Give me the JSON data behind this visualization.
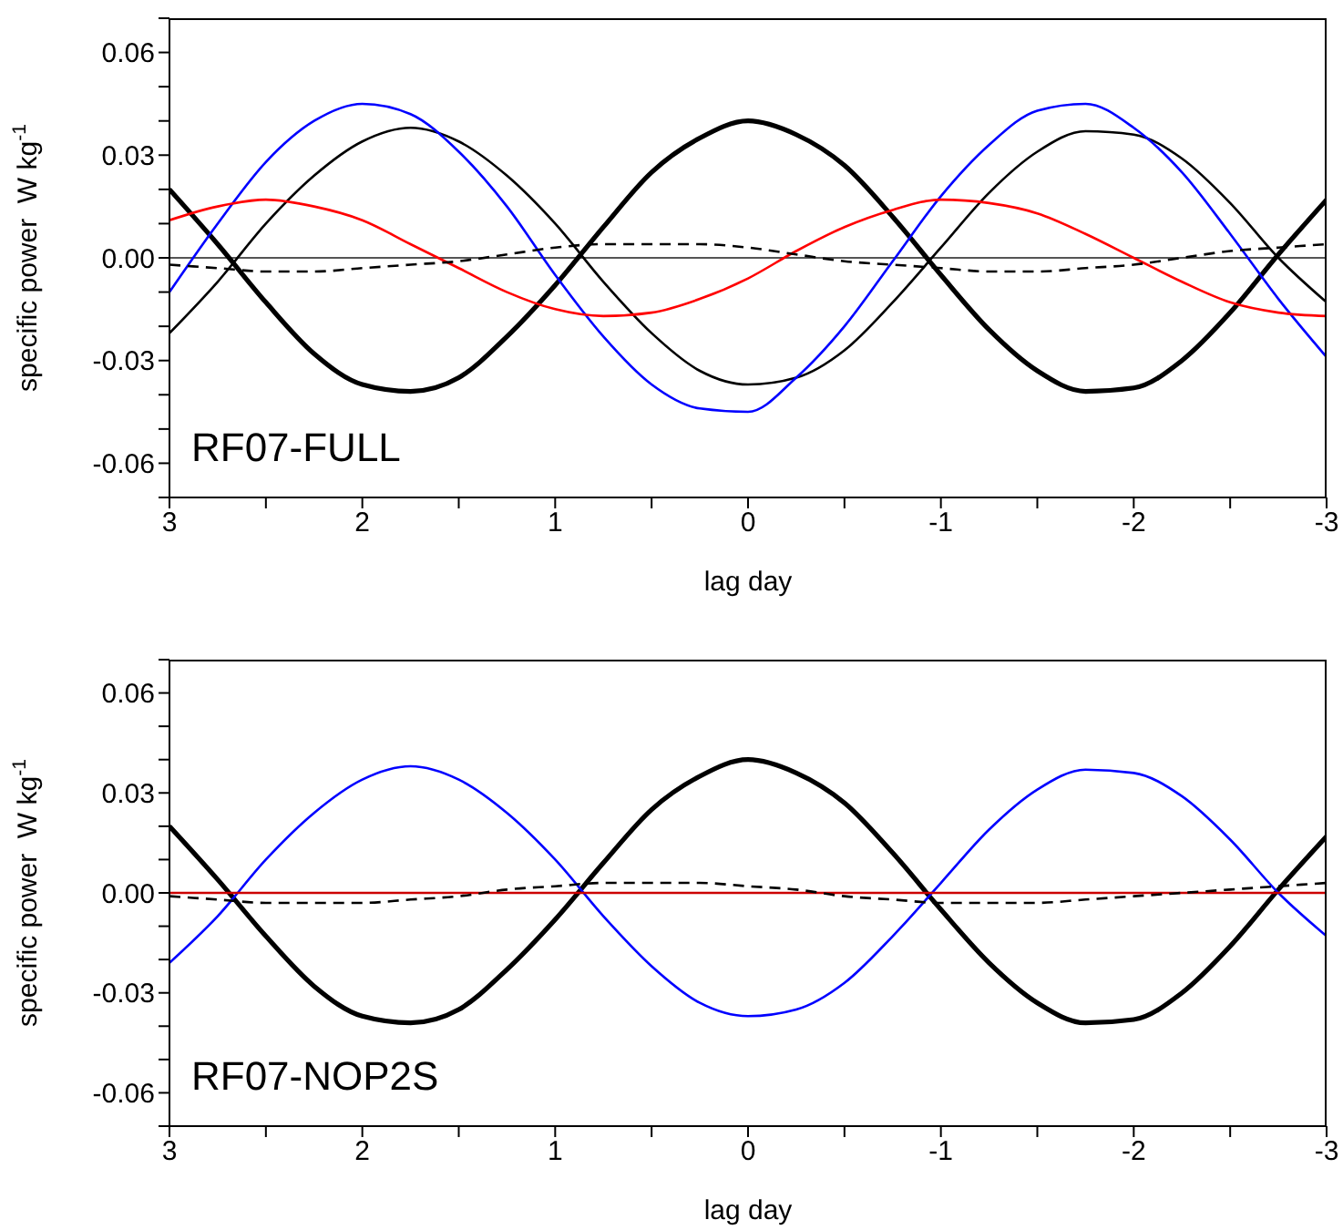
{
  "chart_data": [
    {
      "type": "line",
      "xlabel": "lag  day",
      "ylabel": "specific power  W kg$^{-1}$",
      "annotations": [
        "RF07-FULL"
      ],
      "grid": false,
      "legend": false,
      "marker": "none",
      "xlim": [
        3,
        -3
      ],
      "ylim": [
        -0.07,
        0.07
      ],
      "xticks": [
        3,
        {
          "value": 2.5,
          "label": null
        },
        2,
        {
          "value": 1.5,
          "label": null
        },
        1,
        {
          "value": 0.5,
          "label": null
        },
        0,
        {
          "value": -0.5,
          "label": null
        },
        -1,
        {
          "value": -1.5,
          "label": null
        },
        -2,
        {
          "value": -2.5,
          "label": null
        },
        -3
      ],
      "yticks": [
        {
          "value": -0.07,
          "label": null
        },
        -0.06,
        {
          "value": -0.05,
          "label": null
        },
        {
          "value": -0.04,
          "label": null
        },
        -0.03,
        {
          "value": -0.02,
          "label": null
        },
        {
          "value": -0.01,
          "label": null
        },
        {
          "value": 0,
          "label": "0.00"
        },
        {
          "value": 0.01,
          "label": null
        },
        {
          "value": 0.02,
          "label": null
        },
        0.03,
        {
          "value": 0.04,
          "label": null
        },
        {
          "value": 0.05,
          "label": null
        },
        0.06,
        {
          "value": 0.07,
          "label": null
        }
      ],
      "ref_lines": [
        {
          "axis": "y",
          "value": 0,
          "color": "#555555"
        }
      ],
      "x": [
        3,
        2.75,
        2.5,
        2.25,
        2,
        1.75,
        1.5,
        1.25,
        1,
        0.75,
        0.5,
        0.25,
        0,
        -0.25,
        -0.5,
        -0.75,
        -1,
        -1.25,
        -1.5,
        -1.75,
        -2,
        -2.25,
        -2.5,
        -2.75,
        -3
      ],
      "series": [
        {
          "color": "#000000",
          "line_style": "solid",
          "values": [
            0.02,
            0.004,
            -0.013,
            -0.028,
            -0.037,
            -0.039,
            -0.035,
            -0.023,
            -0.008,
            0.009,
            0.025,
            0.035,
            0.04,
            0.036,
            0.027,
            0.012,
            -0.005,
            -0.021,
            -0.033,
            -0.039,
            -0.038,
            -0.03,
            -0.016,
            0.001,
            0.017
          ]
        },
        {
          "color": "#000000",
          "line_style": "solid",
          "values": [
            -0.022,
            -0.007,
            0.01,
            0.024,
            0.034,
            0.038,
            0.034,
            0.024,
            0.01,
            -0.007,
            -0.022,
            -0.033,
            -0.037,
            -0.035,
            -0.027,
            -0.013,
            0.003,
            0.019,
            0.031,
            0.037,
            0.036,
            0.029,
            0.016,
            0.0,
            -0.013
          ]
        },
        {
          "color": "#0000ff",
          "line_style": "solid",
          "values": [
            -0.01,
            0.01,
            0.028,
            0.04,
            0.045,
            0.042,
            0.031,
            0.015,
            -0.005,
            -0.023,
            -0.037,
            -0.044,
            -0.045,
            -0.035,
            -0.02,
            -0.001,
            0.018,
            0.033,
            0.043,
            0.045,
            0.038,
            0.025,
            0.007,
            -0.012,
            -0.029
          ]
        },
        {
          "color": "#ff0000",
          "line_style": "solid",
          "values": [
            0.011,
            0.015,
            0.017,
            0.015,
            0.011,
            0.004,
            -0.003,
            -0.01,
            -0.015,
            -0.017,
            -0.016,
            -0.012,
            -0.006,
            0.002,
            0.009,
            0.014,
            0.017,
            0.016,
            0.013,
            0.007,
            0.0,
            -0.007,
            -0.013,
            -0.016,
            -0.017
          ]
        },
        {
          "color": "#000000",
          "line_style": "dashed",
          "values": [
            -0.002,
            -0.003,
            -0.004,
            -0.004,
            -0.003,
            -0.002,
            -0.001,
            0.001,
            0.003,
            0.004,
            0.004,
            0.004,
            0.003,
            0.001,
            -0.001,
            -0.002,
            -0.003,
            -0.004,
            -0.004,
            -0.003,
            -0.002,
            0.0,
            0.002,
            0.003,
            0.004
          ]
        }
      ]
    },
    {
      "type": "line",
      "xlabel": "lag  day",
      "ylabel": "specific power  W kg$^{-1}$",
      "annotations": [
        "RF07-NOP2S"
      ],
      "grid": false,
      "legend": false,
      "marker": "none",
      "xlim": [
        3,
        -3
      ],
      "ylim": [
        -0.07,
        0.07
      ],
      "xticks": [
        3,
        {
          "value": 2.5,
          "label": null
        },
        2,
        {
          "value": 1.5,
          "label": null
        },
        1,
        {
          "value": 0.5,
          "label": null
        },
        0,
        {
          "value": -0.5,
          "label": null
        },
        -1,
        {
          "value": -1.5,
          "label": null
        },
        -2,
        {
          "value": -2.5,
          "label": null
        },
        -3
      ],
      "yticks": [
        {
          "value": -0.07,
          "label": null
        },
        -0.06,
        {
          "value": -0.05,
          "label": null
        },
        {
          "value": -0.04,
          "label": null
        },
        -0.03,
        {
          "value": -0.02,
          "label": null
        },
        {
          "value": -0.01,
          "label": null
        },
        {
          "value": 0,
          "label": "0.00"
        },
        {
          "value": 0.01,
          "label": null
        },
        {
          "value": 0.02,
          "label": null
        },
        0.03,
        {
          "value": 0.04,
          "label": null
        },
        {
          "value": 0.05,
          "label": null
        },
        0.06,
        {
          "value": 0.07,
          "label": null
        }
      ],
      "x": [
        3,
        2.75,
        2.5,
        2.25,
        2,
        1.75,
        1.5,
        1.25,
        1,
        0.75,
        0.5,
        0.25,
        0,
        -0.25,
        -0.5,
        -0.75,
        -1,
        -1.25,
        -1.5,
        -1.75,
        -2,
        -2.25,
        -2.5,
        -2.75,
        -3
      ],
      "series": [
        {
          "color": "#000000",
          "line_style": "solid",
          "values": [
            0.02,
            0.004,
            -0.013,
            -0.028,
            -0.037,
            -0.039,
            -0.035,
            -0.023,
            -0.008,
            0.009,
            0.025,
            0.035,
            0.04,
            0.036,
            0.027,
            0.012,
            -0.005,
            -0.021,
            -0.033,
            -0.039,
            -0.038,
            -0.03,
            -0.016,
            0.001,
            0.017
          ]
        },
        {
          "color": "#0000ff",
          "line_style": "solid",
          "values": [
            -0.021,
            -0.007,
            0.01,
            0.024,
            0.034,
            0.038,
            0.034,
            0.024,
            0.01,
            -0.007,
            -0.022,
            -0.033,
            -0.037,
            -0.035,
            -0.027,
            -0.013,
            0.003,
            0.019,
            0.031,
            0.037,
            0.036,
            0.029,
            0.016,
            0.0,
            -0.013
          ]
        },
        {
          "color": "#cc0000",
          "line_style": "solid",
          "values": [
            0,
            0,
            0,
            0,
            0,
            0,
            0,
            0,
            0,
            0,
            0,
            0,
            0,
            0,
            0,
            0,
            0,
            0,
            0,
            0,
            0,
            0,
            0,
            0,
            0
          ]
        },
        {
          "color": "#000000",
          "line_style": "dashed",
          "values": [
            -0.001,
            -0.002,
            -0.003,
            -0.003,
            -0.003,
            -0.002,
            -0.001,
            0.001,
            0.002,
            0.003,
            0.003,
            0.003,
            0.002,
            0.001,
            -0.001,
            -0.002,
            -0.003,
            -0.003,
            -0.003,
            -0.002,
            -0.001,
            0.0,
            0.001,
            0.002,
            0.003
          ]
        }
      ]
    }
  ]
}
